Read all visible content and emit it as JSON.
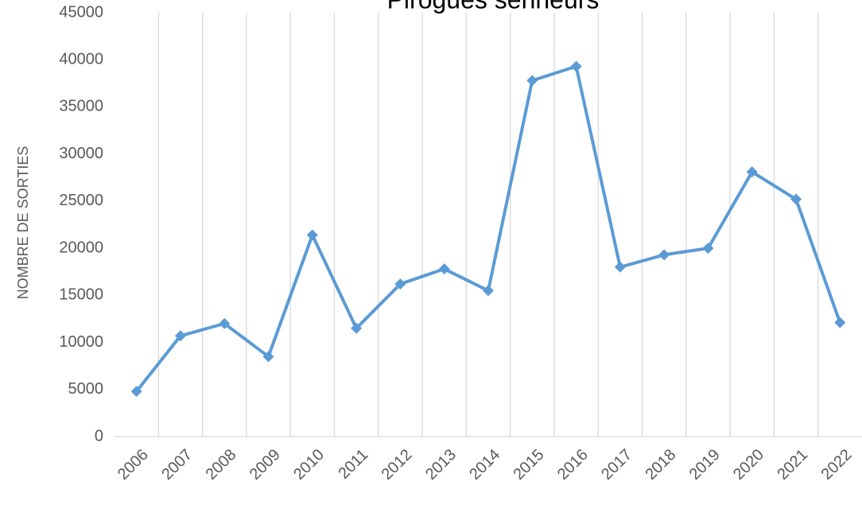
{
  "chart_data": {
    "type": "line",
    "title": "Pirogues senneurs",
    "y_label": "NOMBRE DE SORTIES",
    "categories": [
      "2006",
      "2007",
      "2008",
      "2009",
      "2010",
      "2011",
      "2012",
      "2013",
      "2014",
      "2015",
      "2016",
      "2017",
      "2018",
      "2019",
      "2020",
      "2021",
      "2022"
    ],
    "series": [
      {
        "color": "#5b9bd5",
        "values": [
          4800,
          10700,
          12000,
          8500,
          21400,
          11500,
          16200,
          17800,
          15500,
          37800,
          39300,
          18000,
          19300,
          20000,
          28100,
          25200,
          12100
        ]
      }
    ],
    "ylim": [
      0,
      45000
    ],
    "yticks": [
      0,
      5000,
      10000,
      15000,
      20000,
      25000,
      30000,
      35000,
      40000,
      45000
    ],
    "grid": true
  }
}
